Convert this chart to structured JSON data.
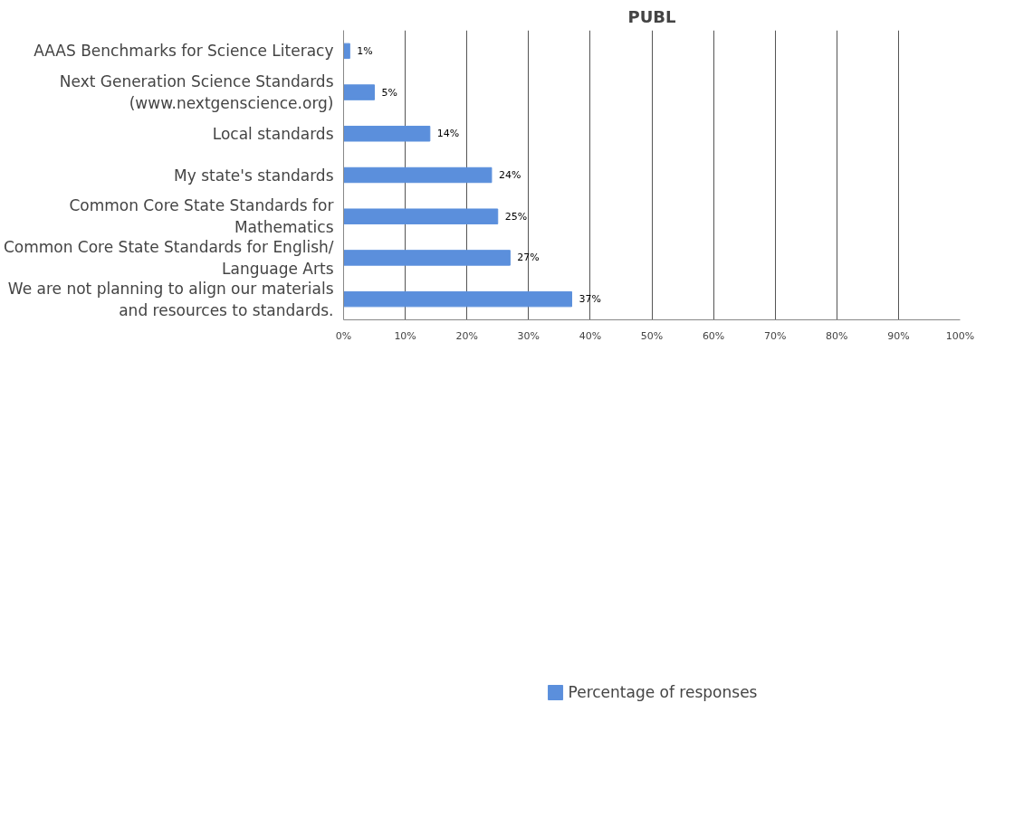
{
  "chart_data": {
    "type": "bar",
    "orientation": "horizontal",
    "title": "PUBL",
    "categories": [
      "AAAS Benchmarks for Science Literacy",
      "Next Generation Science Standards\n(www.nextgenscience.org)",
      "Local standards",
      "My state's standards",
      "Common Core State Standards for\nMathematics",
      "Common Core State Standards for English/\nLanguage Arts",
      "We are not planning to align our materials\nand resources to standards."
    ],
    "series": [
      {
        "name": "Percentage of responses",
        "color": "#5b8fdc",
        "values": [
          1,
          5,
          14,
          24,
          25,
          27,
          37
        ]
      }
    ],
    "value_labels": [
      "1%",
      "5%",
      "14%",
      "24%",
      "25%",
      "27%",
      "37%"
    ],
    "xlim": [
      0,
      100
    ],
    "xticks": [
      {
        "value": 0,
        "label": "0%"
      },
      {
        "value": 10,
        "label": "10%"
      },
      {
        "value": 20,
        "label": "20%"
      },
      {
        "value": 30,
        "label": "30%"
      },
      {
        "value": 40,
        "label": "40%"
      },
      {
        "value": 50,
        "label": "50%"
      },
      {
        "value": 60,
        "label": "60%"
      },
      {
        "value": 70,
        "label": "70%"
      },
      {
        "value": 80,
        "label": "80%"
      },
      {
        "value": 90,
        "label": "90%"
      },
      {
        "value": 100,
        "label": "100%"
      }
    ],
    "grid": "x",
    "legend": "bottom"
  }
}
